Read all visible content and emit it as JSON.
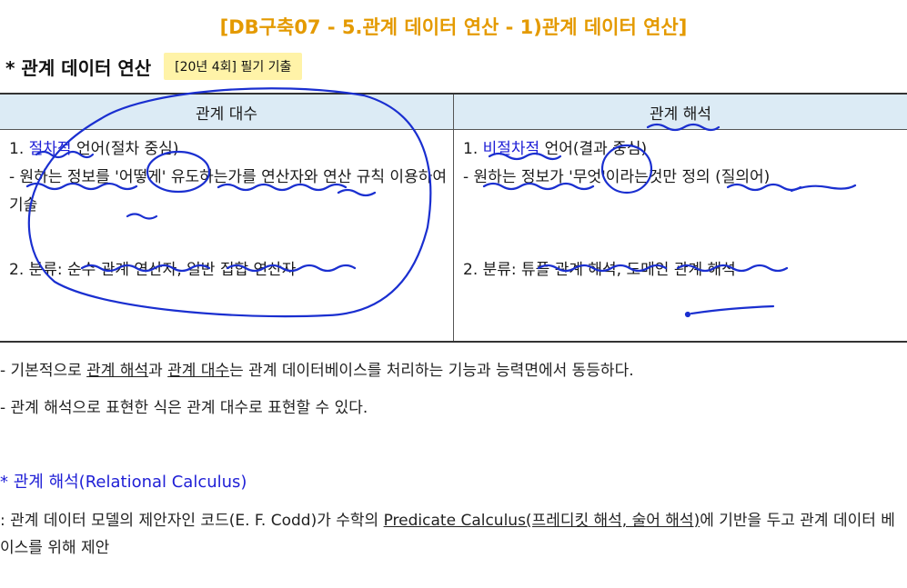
{
  "title": "[DB구축07 - 5.관계 데이터 연산 - 1)관계 데이터 연산]",
  "section": {
    "heading": "* 관계 데이터 연산",
    "badge": "[20년 4회] 필기 기출"
  },
  "table": {
    "headers": [
      "관계 대수",
      "관계 해석"
    ],
    "left": {
      "line1_prefix": "1. ",
      "line1_term": "절차적",
      "line1_rest": " 언어(절차 중심)",
      "line2": "- 원하는 정보를 '어떻게' 유도하는가를 연산자와 연산 규칙 이용하여 기술",
      "line3": "2. 분류: 순수 관계 연산자, 일반 집합 연산자"
    },
    "right": {
      "line1_prefix": "1. ",
      "line1_term": "비절차적",
      "line1_rest": " 언어(결과 중심)",
      "line2": "- 원하는 정보가 '무엇'이라는것만 정의 (질의어)",
      "line3": "2. 분류: 튜플 관계 해석, 도메인 관계 해석"
    }
  },
  "notes": {
    "n1_a": "- 기본적으로 ",
    "n1_u1": "관계 해석",
    "n1_b": "과 ",
    "n1_u2": "관계 대수",
    "n1_c": "는 관계 데이터베이스를 처리하는 기능과 능력면에서 동등하다.",
    "n2": "- 관계 해석으로 표현한 식은 관계 대수로 표현할 수 있다."
  },
  "calculus": {
    "heading": "* 관계 해석(Relational Calculus)",
    "def_a": ": 관계 데이터 모델의 제안자인 코드(E. F. Codd)가 수학의 ",
    "def_u": "Predicate Calculus(프레디킷 해석, 술어 해석)",
    "def_b": "에 기반을 두고 관계 데이터 베이스를 위해 제안"
  },
  "colors": {
    "title": "#e49a00",
    "accent_blue": "#1f1fd6",
    "header_bg": "#dcebf5",
    "badge_bg": "#fff3a8"
  }
}
